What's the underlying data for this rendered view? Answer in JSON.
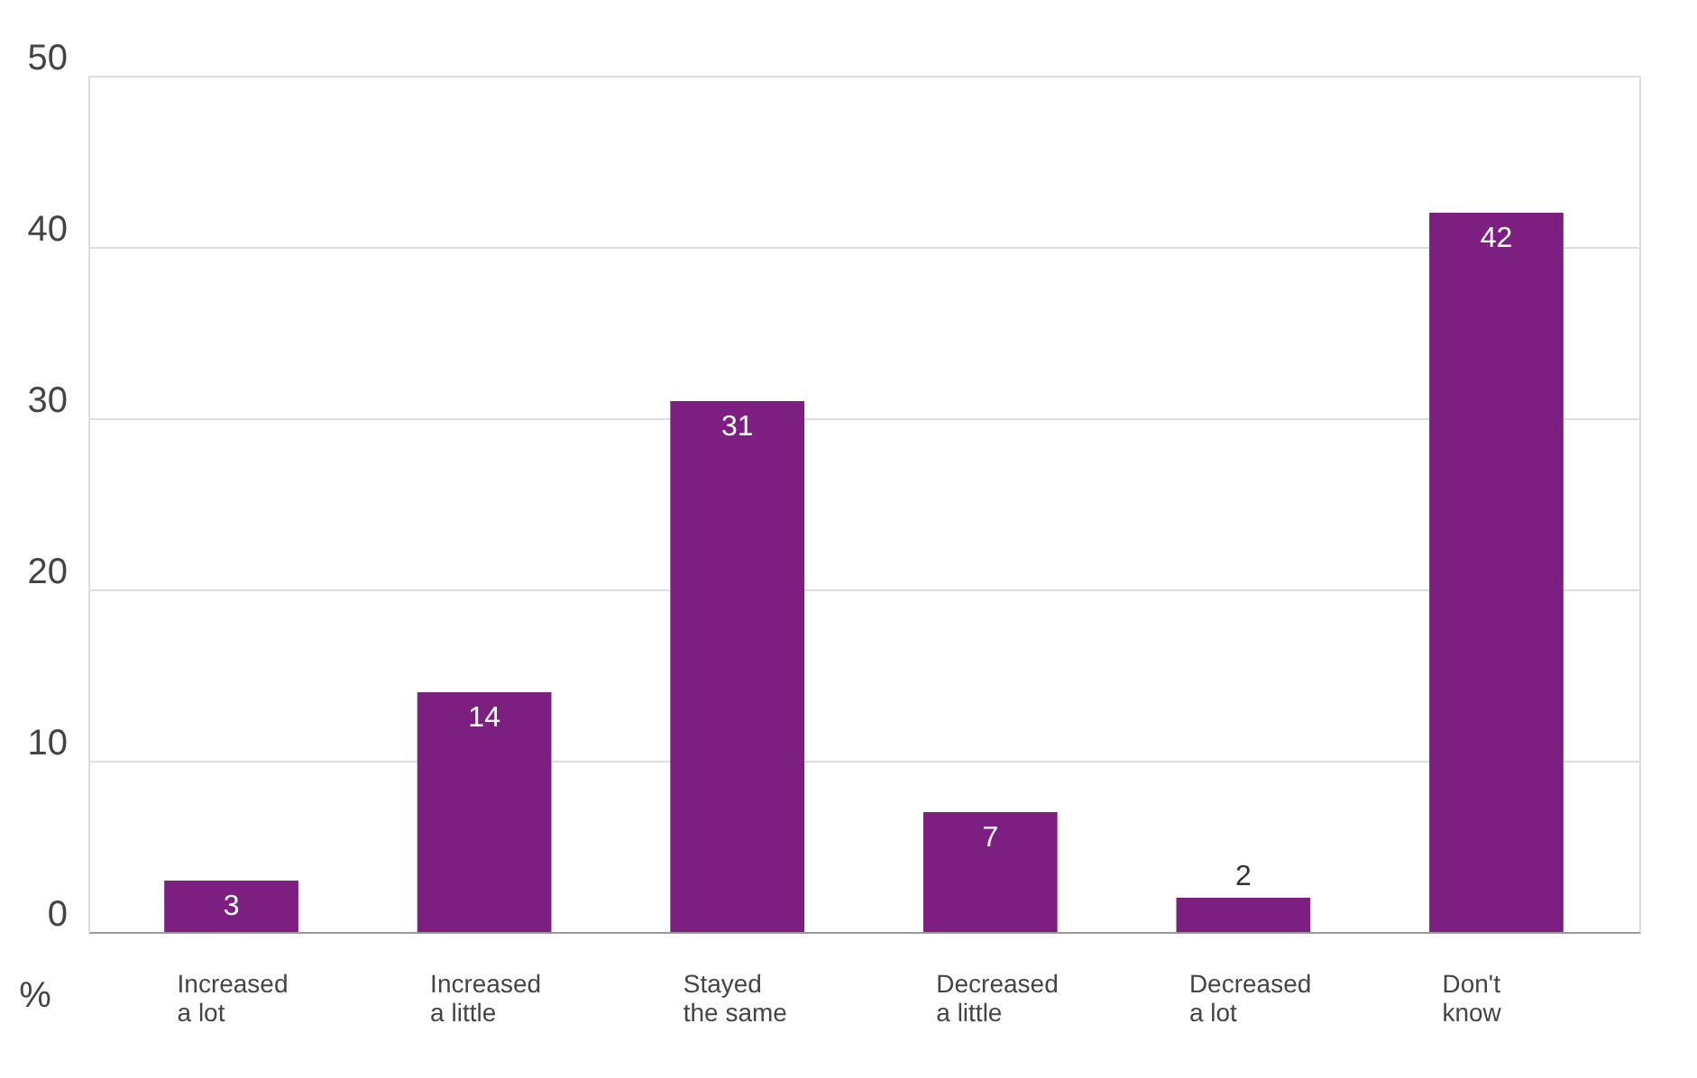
{
  "chart_data": {
    "type": "bar",
    "categories": [
      "Increased\na lot",
      "Increased\na little",
      "Stayed\nthe same",
      "Decreased\na little",
      "Decreased\na lot",
      "Don't\nknow"
    ],
    "values": [
      3,
      14,
      31,
      7,
      2,
      42
    ],
    "color": "#7d1f80",
    "ylabel": "%",
    "ylim": [
      0,
      50
    ],
    "yticks": [
      0,
      10,
      20,
      30,
      40,
      50
    ],
    "grid": "y",
    "data_labels": true
  }
}
